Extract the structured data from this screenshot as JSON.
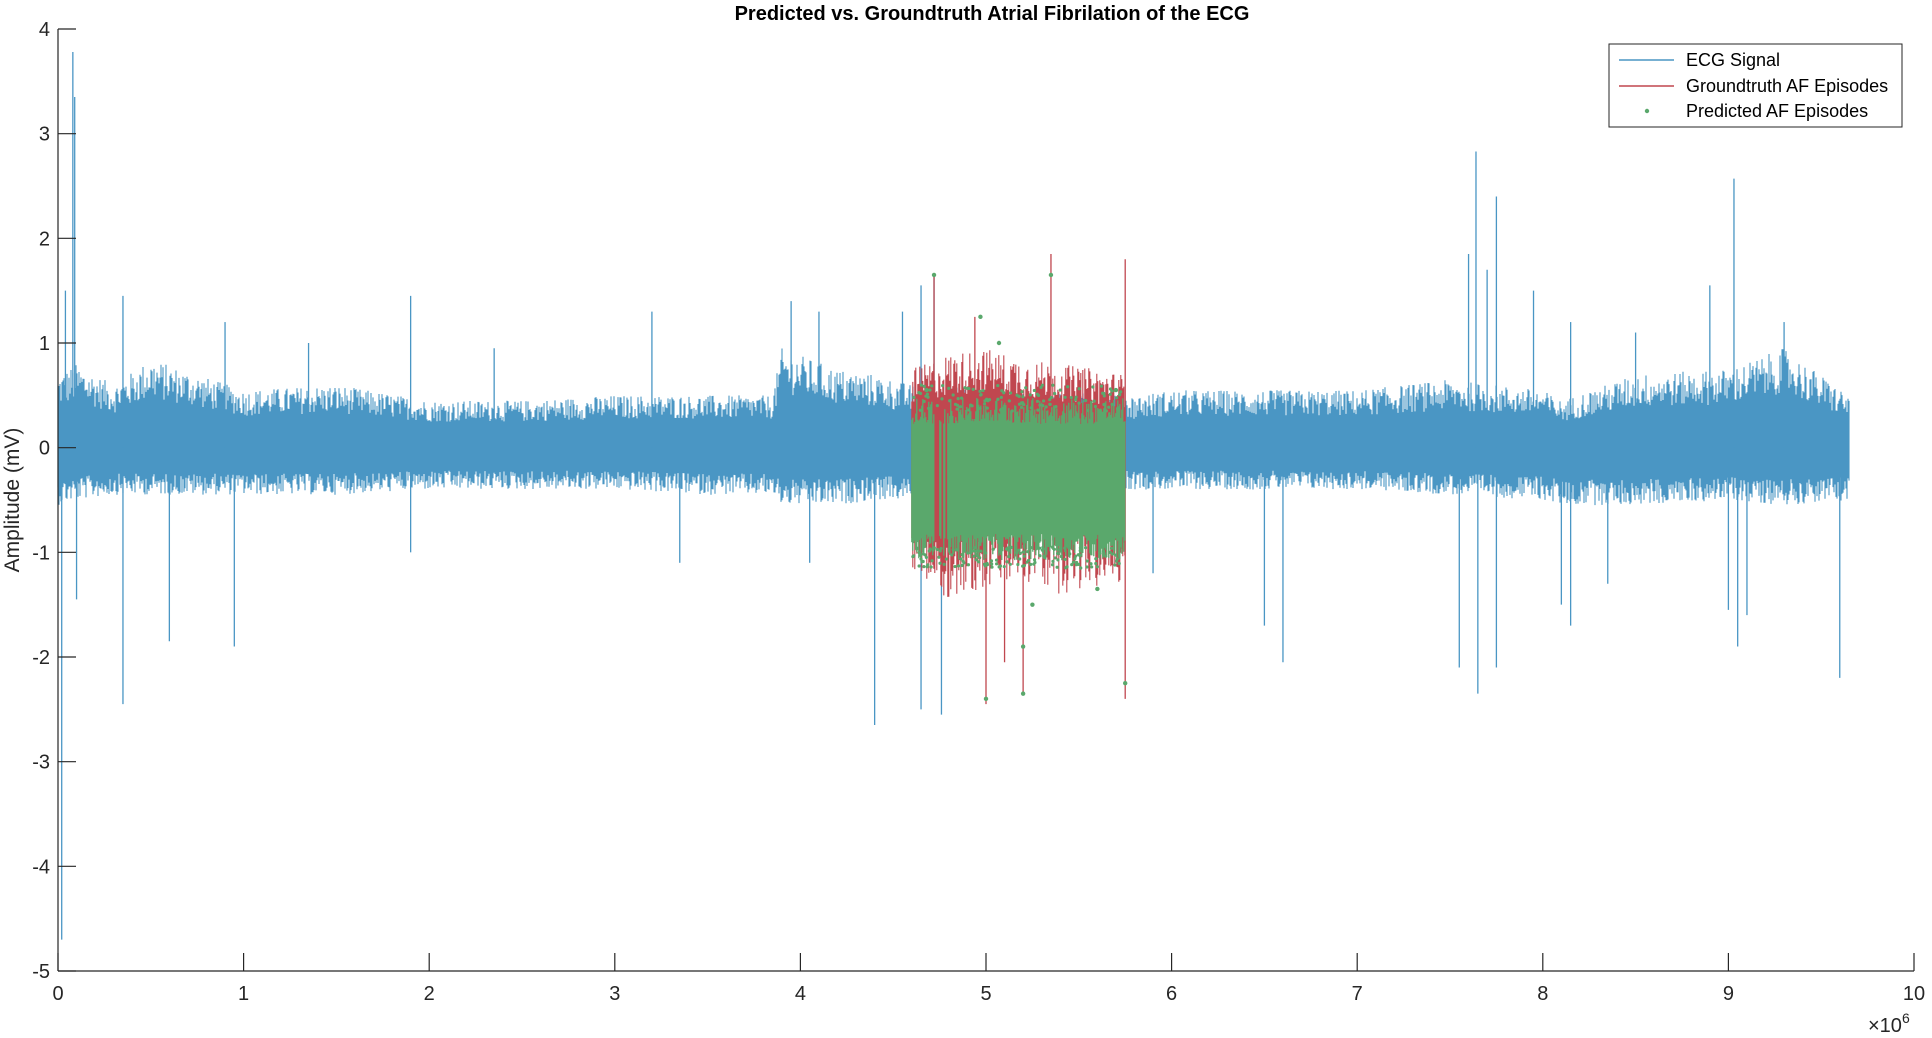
{
  "chart_data": {
    "type": "line",
    "title": "Predicted vs. Groundtruth Atrial Fibrilation of the ECG",
    "xlabel": "",
    "ylabel": "Amplitude (mV)",
    "xlim": [
      0,
      10000000
    ],
    "ylim": [
      -5,
      4
    ],
    "x_exponent_label": "×10",
    "x_exponent_power": "6",
    "x_ticks": [
      0,
      1,
      2,
      3,
      4,
      5,
      6,
      7,
      8,
      9,
      10
    ],
    "x_tick_labels": [
      "0",
      "1",
      "2",
      "3",
      "4",
      "5",
      "6",
      "7",
      "8",
      "9",
      "10"
    ],
    "y_ticks": [
      -5,
      -4,
      -3,
      -2,
      -1,
      0,
      1,
      2,
      3,
      4
    ],
    "y_tick_labels": [
      "-5",
      "-4",
      "-3",
      "-2",
      "-1",
      "0",
      "1",
      "2",
      "3",
      "4"
    ],
    "grid": false,
    "legend_position": "top-right",
    "colors": {
      "ecg": "#4a96c4",
      "groundtruth": "#c0474f",
      "predicted": "#5aa86c",
      "axis": "#262626"
    },
    "series": [
      {
        "name": "ECG Signal",
        "style": "line",
        "x_range": [
          0,
          9650000
        ],
        "envelope": {
          "x": [
            0,
            100000,
            300000,
            500000,
            1000000,
            1500000,
            2000000,
            2500000,
            3000000,
            3500000,
            3850000,
            3900000,
            4200000,
            4400000,
            4600000,
            5800000,
            6000000,
            6500000,
            7000000,
            7500000,
            8000000,
            8100000,
            8500000,
            9000000,
            9300000,
            9650000
          ],
          "upper": [
            0.7,
            0.8,
            0.6,
            0.85,
            0.55,
            0.6,
            0.45,
            0.45,
            0.5,
            0.5,
            0.5,
            0.95,
            0.75,
            0.7,
            0.6,
            0.5,
            0.55,
            0.55,
            0.55,
            0.65,
            0.55,
            0.45,
            0.7,
            0.75,
            0.95,
            0.5
          ],
          "lower": [
            -0.55,
            -0.5,
            -0.45,
            -0.45,
            -0.45,
            -0.45,
            -0.4,
            -0.4,
            -0.4,
            -0.45,
            -0.45,
            -0.55,
            -0.55,
            -0.5,
            -0.5,
            -0.4,
            -0.4,
            -0.4,
            -0.4,
            -0.45,
            -0.5,
            -0.55,
            -0.55,
            -0.5,
            -0.55,
            -0.5
          ]
        },
        "spikes": [
          {
            "x": 20000,
            "y": -4.7
          },
          {
            "x": 40000,
            "y": 1.5
          },
          {
            "x": 80000,
            "y": 3.78
          },
          {
            "x": 90000,
            "y": 3.35
          },
          {
            "x": 100000,
            "y": -1.45
          },
          {
            "x": 350000,
            "y": 1.45
          },
          {
            "x": 350000,
            "y": -2.45
          },
          {
            "x": 600000,
            "y": -1.85
          },
          {
            "x": 900000,
            "y": 1.2
          },
          {
            "x": 950000,
            "y": -1.9
          },
          {
            "x": 1350000,
            "y": 1.0
          },
          {
            "x": 1900000,
            "y": 1.45
          },
          {
            "x": 1900000,
            "y": -1.0
          },
          {
            "x": 2350000,
            "y": 0.95
          },
          {
            "x": 3200000,
            "y": 1.3
          },
          {
            "x": 3350000,
            "y": -1.1
          },
          {
            "x": 3950000,
            "y": 1.4
          },
          {
            "x": 4050000,
            "y": -1.1
          },
          {
            "x": 4100000,
            "y": 1.3
          },
          {
            "x": 4400000,
            "y": -2.65
          },
          {
            "x": 4550000,
            "y": 1.3
          },
          {
            "x": 4650000,
            "y": 1.55
          },
          {
            "x": 4650000,
            "y": -2.5
          },
          {
            "x": 4720000,
            "y": 1.65
          },
          {
            "x": 4760000,
            "y": -2.55
          },
          {
            "x": 5900000,
            "y": -1.2
          },
          {
            "x": 6500000,
            "y": -1.7
          },
          {
            "x": 6600000,
            "y": -2.05
          },
          {
            "x": 7550000,
            "y": -2.1
          },
          {
            "x": 7600000,
            "y": 1.85
          },
          {
            "x": 7640000,
            "y": 2.83
          },
          {
            "x": 7650000,
            "y": -2.35
          },
          {
            "x": 7700000,
            "y": 1.7
          },
          {
            "x": 7750000,
            "y": -2.1
          },
          {
            "x": 7750000,
            "y": 2.4
          },
          {
            "x": 7950000,
            "y": 1.5
          },
          {
            "x": 8100000,
            "y": -1.5
          },
          {
            "x": 8150000,
            "y": -1.7
          },
          {
            "x": 8150000,
            "y": 1.2
          },
          {
            "x": 8350000,
            "y": -1.3
          },
          {
            "x": 8500000,
            "y": 1.1
          },
          {
            "x": 8900000,
            "y": 1.55
          },
          {
            "x": 9000000,
            "y": -1.55
          },
          {
            "x": 9030000,
            "y": 2.57
          },
          {
            "x": 9050000,
            "y": -1.9
          },
          {
            "x": 9100000,
            "y": -1.6
          },
          {
            "x": 9300000,
            "y": 1.2
          },
          {
            "x": 9600000,
            "y": -2.2
          }
        ]
      },
      {
        "name": "Groundtruth AF Episodes",
        "style": "line",
        "x_range": [
          4600000,
          5750000
        ],
        "envelope": {
          "x": [
            4600000,
            4800000,
            5000000,
            5200000,
            5400000,
            5600000,
            5750000
          ],
          "upper": [
            0.75,
            0.9,
            0.95,
            0.85,
            0.8,
            0.75,
            0.7
          ],
          "lower": [
            -1.25,
            -1.45,
            -1.35,
            -1.3,
            -1.4,
            -1.35,
            -1.3
          ]
        },
        "spikes": [
          {
            "x": 4720000,
            "y": 1.65
          },
          {
            "x": 4940000,
            "y": 1.25
          },
          {
            "x": 5000000,
            "y": -2.45
          },
          {
            "x": 5100000,
            "y": -2.05
          },
          {
            "x": 5200000,
            "y": -2.35
          },
          {
            "x": 5350000,
            "y": 1.85
          },
          {
            "x": 5750000,
            "y": 1.8
          },
          {
            "x": 5750000,
            "y": -2.4
          }
        ]
      },
      {
        "name": "Predicted AF Episodes",
        "style": "markers",
        "x_range": [
          4600000,
          5750000
        ],
        "gap": [
          4720000,
          4790000
        ],
        "band": [
          -0.95,
          0.35
        ],
        "outliers": [
          {
            "x": 4720000,
            "y": 1.65
          },
          {
            "x": 4970000,
            "y": 1.25
          },
          {
            "x": 5070000,
            "y": 1.0
          },
          {
            "x": 5200000,
            "y": -1.9
          },
          {
            "x": 5200000,
            "y": -2.35
          },
          {
            "x": 5250000,
            "y": -1.5
          },
          {
            "x": 5350000,
            "y": 1.65
          },
          {
            "x": 5000000,
            "y": -2.4
          },
          {
            "x": 5750000,
            "y": -2.25
          },
          {
            "x": 5600000,
            "y": -1.35
          },
          {
            "x": 4680000,
            "y": 0.55
          },
          {
            "x": 5700000,
            "y": 0.55
          }
        ]
      }
    ]
  }
}
